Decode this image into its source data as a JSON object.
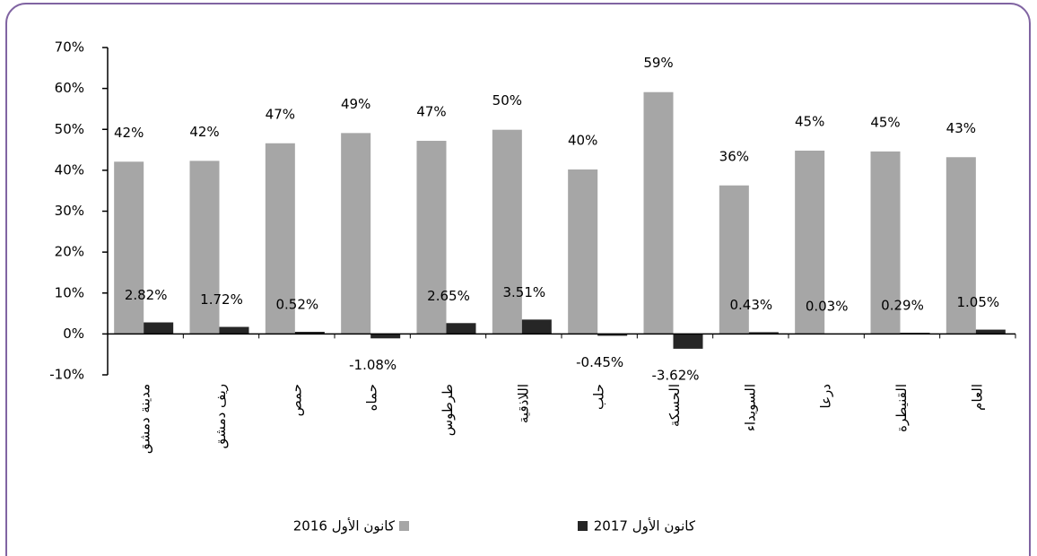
{
  "chart_data": {
    "type": "bar",
    "categories": [
      "مدينة دمشق",
      "ريف دمشق",
      "حمص",
      "حماه",
      "طرطوس",
      "اللاذقية",
      "حلب",
      "الحسكة",
      "السويداء",
      "درعا",
      "القنيطرة",
      "العام"
    ],
    "series": [
      {
        "name": "كانون الأول 2016",
        "color": "#a6a6a6",
        "values": [
          42.1,
          42.3,
          46.6,
          49.1,
          47.2,
          49.9,
          40.2,
          59.1,
          36.3,
          44.8,
          44.6,
          43.2
        ],
        "value_labels": [
          "42%",
          "42%",
          "47%",
          "49%",
          "47%",
          "50%",
          "40%",
          "59%",
          "36%",
          "45%",
          "45%",
          "43%"
        ]
      },
      {
        "name": "كانون الأول 2017",
        "color": "#262626",
        "values": [
          2.82,
          1.72,
          0.52,
          -1.08,
          2.65,
          3.51,
          -0.45,
          -3.62,
          0.43,
          0.03,
          0.29,
          1.05
        ],
        "value_labels": [
          "2.82%",
          "1.72%",
          "0.52%",
          "-1.08%",
          "2.65%",
          "3.51%",
          "-0.45%",
          "-3.62%",
          "0.43%",
          "0.03%",
          "0.29%",
          "1.05%"
        ]
      }
    ],
    "ylim": [
      -10,
      70
    ],
    "yticks": [
      {
        "value": -10,
        "label": "-10%"
      },
      {
        "value": 0,
        "label": "0%"
      },
      {
        "value": 10,
        "label": "10%"
      },
      {
        "value": 20,
        "label": "20%"
      },
      {
        "value": 30,
        "label": "30%"
      },
      {
        "value": 40,
        "label": "40%"
      },
      {
        "value": 50,
        "label": "50%"
      },
      {
        "value": 60,
        "label": "60%"
      },
      {
        "value": 70,
        "label": "70%"
      }
    ],
    "legend": "bottom"
  }
}
